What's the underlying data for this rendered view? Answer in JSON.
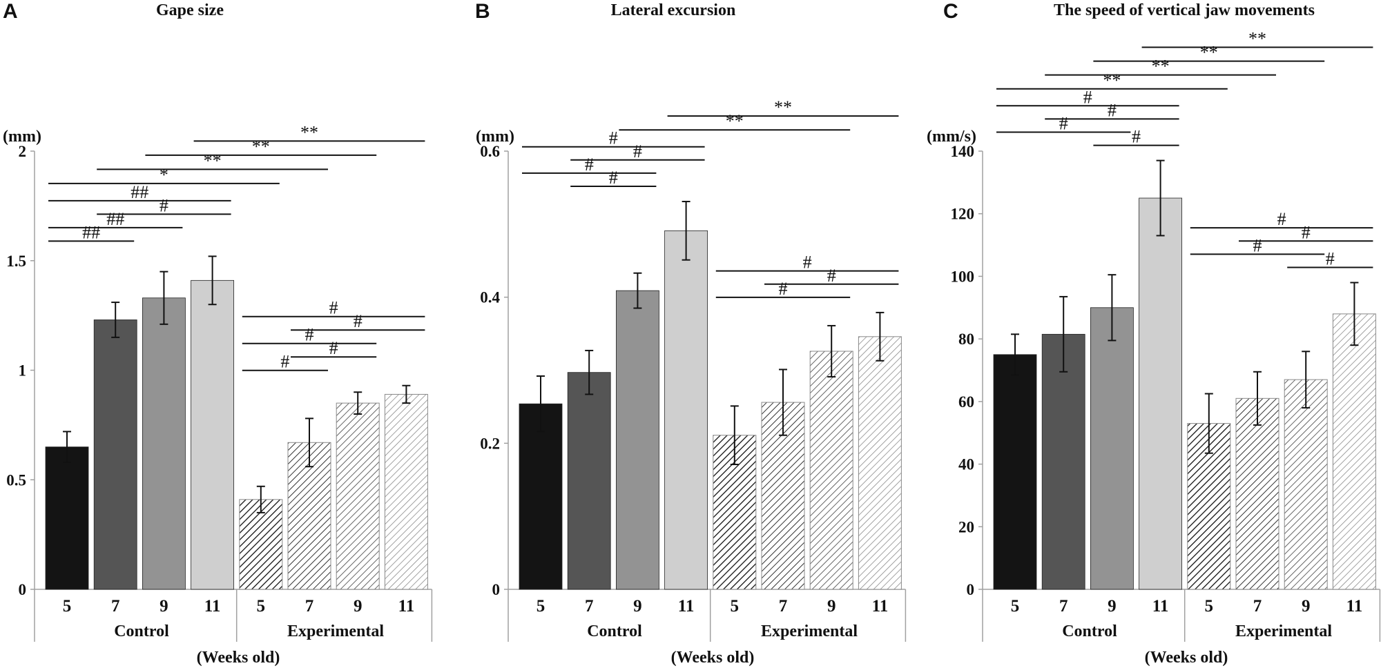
{
  "colors": {
    "control": [
      "#141414",
      "#555555",
      "#939393",
      "#cfcfcf"
    ],
    "experimental": [
      "#141414",
      "#555555",
      "#939393",
      "#cfcfcf"
    ],
    "axis": "#a0a0a0",
    "text": "#111111"
  },
  "chart_data": [
    {
      "panel": "A",
      "type": "bar",
      "title": "Gape size",
      "ylabel": "(mm)",
      "xlabel": "(Weeks old)",
      "ylim": [
        0,
        2
      ],
      "yticks": [
        0,
        0.5,
        1,
        1.5,
        2
      ],
      "ytick_labels": [
        "0",
        "0.5",
        "1",
        "1.5",
        "2"
      ],
      "groups": [
        "Control",
        "Experimental"
      ],
      "categories": [
        "5",
        "7",
        "9",
        "11"
      ],
      "series": [
        {
          "name": "Control",
          "values": [
            0.65,
            1.23,
            1.33,
            1.41
          ],
          "errors": [
            0.07,
            0.08,
            0.12,
            0.11
          ]
        },
        {
          "name": "Experimental",
          "values": [
            0.41,
            0.67,
            0.85,
            0.89
          ],
          "errors": [
            0.06,
            0.11,
            0.05,
            0.04
          ]
        }
      ],
      "brackets": [
        {
          "from": 0,
          "to": 1,
          "label": "##"
        },
        {
          "from": 0,
          "to": 2,
          "label": "##"
        },
        {
          "from": 0,
          "to": 3,
          "label": "##"
        },
        {
          "from": 1,
          "to": 3,
          "label": "#"
        },
        {
          "from": 0,
          "to": 4,
          "label": "*"
        },
        {
          "from": 1,
          "to": 5,
          "label": "**"
        },
        {
          "from": 2,
          "to": 6,
          "label": "**"
        },
        {
          "from": 3,
          "to": 7,
          "label": "**"
        },
        {
          "from": 4,
          "to": 5,
          "label": "#"
        },
        {
          "from": 4,
          "to": 6,
          "label": "#"
        },
        {
          "from": 4,
          "to": 7,
          "label": "#"
        },
        {
          "from": 5,
          "to": 6,
          "label": "#"
        },
        {
          "from": 5,
          "to": 7,
          "label": "#"
        }
      ]
    },
    {
      "panel": "B",
      "type": "bar",
      "title": "Lateral excursion",
      "ylabel": "(mm)",
      "xlabel": "(Weeks old)",
      "ylim": [
        0,
        0.6
      ],
      "yticks": [
        0,
        0.2,
        0.4,
        0.6
      ],
      "ytick_labels": [
        "0",
        "0.2",
        "0.4",
        "0.6"
      ],
      "groups": [
        "Control",
        "Experimental"
      ],
      "categories": [
        "5",
        "7",
        "9",
        "11"
      ],
      "series": [
        {
          "name": "Control",
          "values": [
            0.254,
            0.297,
            0.409,
            0.491
          ],
          "errors": [
            0.038,
            0.03,
            0.024,
            0.04
          ]
        },
        {
          "name": "Experimental",
          "values": [
            0.211,
            0.256,
            0.326,
            0.346
          ],
          "errors": [
            0.04,
            0.045,
            0.035,
            0.033
          ]
        }
      ],
      "brackets": [
        {
          "from": 0,
          "to": 2,
          "label": "#"
        },
        {
          "from": 0,
          "to": 3,
          "label": "#"
        },
        {
          "from": 1,
          "to": 2,
          "label": "#"
        },
        {
          "from": 1,
          "to": 3,
          "label": "#"
        },
        {
          "from": 2,
          "to": 6,
          "label": "**"
        },
        {
          "from": 3,
          "to": 7,
          "label": "**"
        },
        {
          "from": 4,
          "to": 6,
          "label": "#"
        },
        {
          "from": 4,
          "to": 7,
          "label": "#"
        },
        {
          "from": 5,
          "to": 7,
          "label": "#"
        }
      ]
    },
    {
      "panel": "C",
      "type": "bar",
      "title": "The speed of vertical jaw movements",
      "ylabel": "(mm/s)",
      "xlabel": "(Weeks old)",
      "ylim": [
        0,
        140
      ],
      "yticks": [
        0,
        20,
        40,
        60,
        80,
        100,
        120,
        140
      ],
      "ytick_labels": [
        "0",
        "20",
        "40",
        "60",
        "80",
        "100",
        "120",
        "140"
      ],
      "groups": [
        "Control",
        "Experimental"
      ],
      "categories": [
        "5",
        "7",
        "9",
        "11"
      ],
      "series": [
        {
          "name": "Control",
          "values": [
            75,
            81.5,
            90,
            125
          ],
          "errors": [
            6.5,
            12,
            10.5,
            12
          ]
        },
        {
          "name": "Experimental",
          "values": [
            53,
            61,
            67,
            88
          ],
          "errors": [
            9.5,
            8.5,
            9,
            10
          ]
        }
      ],
      "brackets": [
        {
          "from": 0,
          "to": 2,
          "label": "#"
        },
        {
          "from": 0,
          "to": 3,
          "label": "#"
        },
        {
          "from": 1,
          "to": 3,
          "label": "#"
        },
        {
          "from": 2,
          "to": 3,
          "label": "#"
        },
        {
          "from": 0,
          "to": 4,
          "label": "**"
        },
        {
          "from": 1,
          "to": 5,
          "label": "**"
        },
        {
          "from": 2,
          "to": 6,
          "label": "**"
        },
        {
          "from": 3,
          "to": 7,
          "label": "**"
        },
        {
          "from": 4,
          "to": 6,
          "label": "#"
        },
        {
          "from": 4,
          "to": 7,
          "label": "#"
        },
        {
          "from": 5,
          "to": 7,
          "label": "#"
        },
        {
          "from": 6,
          "to": 7,
          "label": "#"
        }
      ]
    }
  ]
}
